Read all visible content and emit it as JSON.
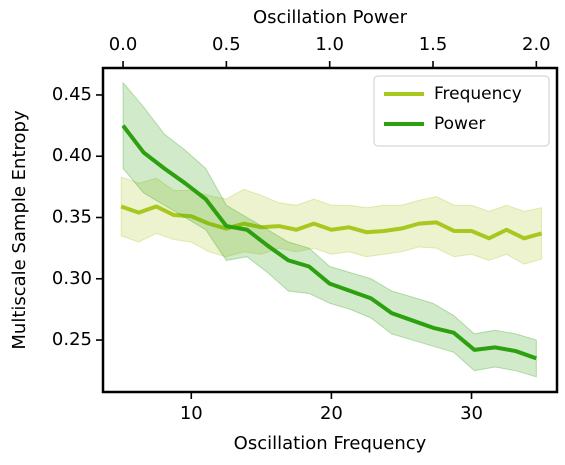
{
  "chart_data": {
    "type": "line",
    "xlabel": "Oscillation Frequency",
    "ylabel": "Multiscale Sample Entropy",
    "x2label": "Oscillation Power",
    "xlim": [
      3.7,
      36.1
    ],
    "xticks": [
      10,
      20,
      30
    ],
    "x2lim": [
      -0.097,
      2.1
    ],
    "x2ticks": [
      {
        "value": 0,
        "label": "0.0"
      },
      0.5,
      {
        "value": 1,
        "label": "1.0"
      },
      1.5,
      {
        "value": 2,
        "label": "2.0"
      }
    ],
    "ylim": [
      0.2076,
      0.472
    ],
    "yticks": [
      0.25,
      {
        "value": 0.3,
        "label": "0.30"
      },
      0.35,
      {
        "value": 0.4,
        "label": "0.40"
      },
      0.45
    ],
    "legend": "upper right",
    "series": [
      {
        "name": "Frequency",
        "color": "#a8c81f",
        "xaxis": "x",
        "x": [
          5,
          6.25,
          7.5,
          8.75,
          10,
          11.25,
          12.5,
          13.75,
          15,
          16.25,
          17.5,
          18.75,
          20,
          21.25,
          22.5,
          23.75,
          25,
          26.25,
          27.5,
          28.75,
          30,
          31.25,
          32.5,
          33.75,
          35
        ],
        "values": [
          0.359,
          0.354,
          0.359,
          0.352,
          0.351,
          0.345,
          0.341,
          0.345,
          0.342,
          0.343,
          0.34,
          0.345,
          0.34,
          0.342,
          0.338,
          0.339,
          0.341,
          0.345,
          0.346,
          0.339,
          0.339,
          0.333,
          0.34,
          0.333,
          0.337
        ],
        "lower": [
          0.335,
          0.33,
          0.337,
          0.332,
          0.33,
          0.322,
          0.318,
          0.322,
          0.32,
          0.325,
          0.322,
          0.325,
          0.32,
          0.322,
          0.318,
          0.32,
          0.322,
          0.326,
          0.325,
          0.318,
          0.32,
          0.315,
          0.32,
          0.312,
          0.316
        ],
        "upper": [
          0.383,
          0.378,
          0.382,
          0.372,
          0.372,
          0.368,
          0.365,
          0.373,
          0.368,
          0.362,
          0.36,
          0.365,
          0.36,
          0.36,
          0.358,
          0.36,
          0.36,
          0.364,
          0.367,
          0.36,
          0.36,
          0.355,
          0.36,
          0.355,
          0.358
        ]
      },
      {
        "name": "Power",
        "color": "#2ca00f",
        "xaxis": "x2",
        "x": [
          0,
          0.1,
          0.2,
          0.3,
          0.4,
          0.5,
          0.6,
          0.7,
          0.8,
          0.9,
          1.0,
          1.1,
          1.2,
          1.3,
          1.4,
          1.5,
          1.6,
          1.7,
          1.8,
          1.9,
          2.0
        ],
        "values": [
          0.425,
          0.403,
          0.39,
          0.378,
          0.365,
          0.343,
          0.34,
          0.327,
          0.315,
          0.31,
          0.296,
          0.29,
          0.284,
          0.272,
          0.266,
          0.26,
          0.256,
          0.242,
          0.244,
          0.241,
          0.235
        ],
        "lower": [
          0.39,
          0.37,
          0.36,
          0.35,
          0.34,
          0.315,
          0.318,
          0.305,
          0.29,
          0.288,
          0.28,
          0.275,
          0.268,
          0.255,
          0.25,
          0.245,
          0.24,
          0.225,
          0.228,
          0.225,
          0.22
        ],
        "upper": [
          0.46,
          0.44,
          0.418,
          0.405,
          0.39,
          0.36,
          0.35,
          0.34,
          0.33,
          0.325,
          0.31,
          0.305,
          0.3,
          0.29,
          0.285,
          0.28,
          0.27,
          0.255,
          0.258,
          0.255,
          0.25
        ]
      }
    ]
  }
}
